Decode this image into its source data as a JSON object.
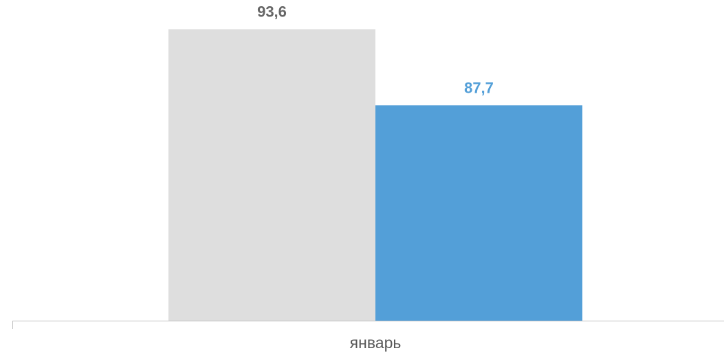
{
  "chart_data": {
    "type": "bar",
    "categories": [
      "январь"
    ],
    "series": [
      {
        "values": [
          93.6
        ],
        "color": "#dedede",
        "label_color": "#666666"
      },
      {
        "values": [
          87.7
        ],
        "color": "#539fd8",
        "label_color": "#539fd8"
      }
    ],
    "data_labels": [
      "93,6",
      "87,7"
    ],
    "ylim": [
      71,
      94
    ],
    "grid": false,
    "legend": "none",
    "title": "",
    "xlabel": "",
    "ylabel": ""
  },
  "colors": {
    "axis": "#bfbfbf",
    "category_text": "#595959"
  }
}
